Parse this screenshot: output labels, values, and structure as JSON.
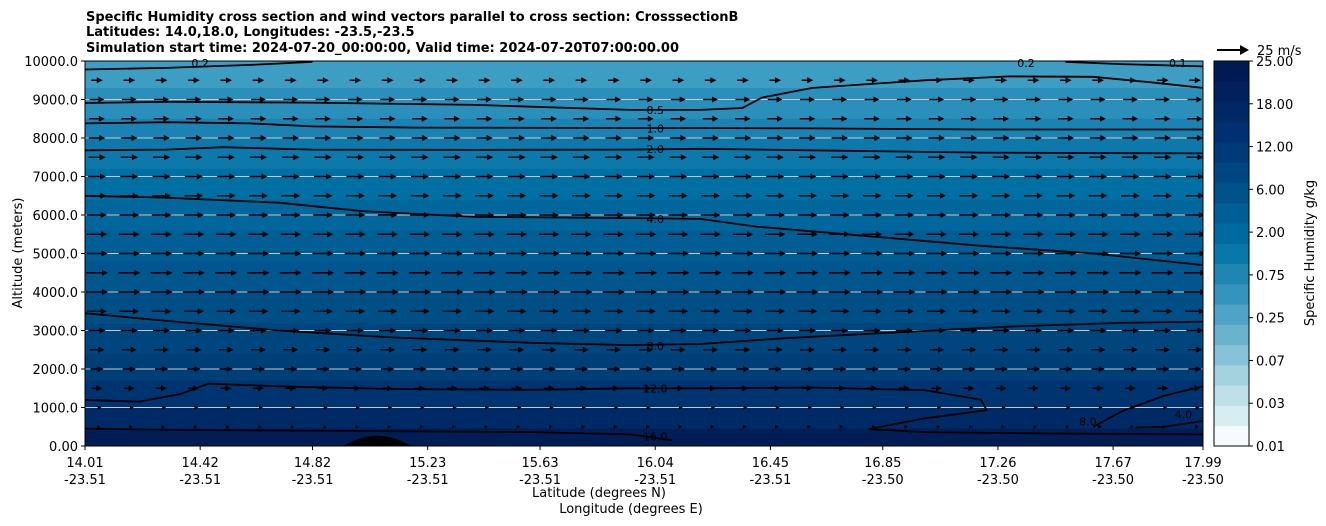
{
  "chart_data": {
    "type": "contourf",
    "title_lines": [
      "Specific Humidity cross section and wind vectors parallel to cross section: CrosssectionB",
      "Latitudes: 14.0,18.0, Longitudes: -23.5,-23.5",
      "Simulation start time: 2024-07-20_00:00:00, Valid time: 2024-07-20T07:00:00.00"
    ],
    "xlabel_line1": "Latitude (degrees N)",
    "xlabel_line2": "Longitude (degrees E)",
    "ylabel": "Altitude (meters)",
    "ylim": [
      0,
      10000
    ],
    "xlim": [
      14.01,
      17.99
    ],
    "grid": "horizontal",
    "x_ticks": [
      {
        "lat": "14.01",
        "lon": "-23.51",
        "v": 14.01
      },
      {
        "lat": "14.42",
        "lon": "-23.51",
        "v": 14.42
      },
      {
        "lat": "14.82",
        "lon": "-23.51",
        "v": 14.82
      },
      {
        "lat": "15.23",
        "lon": "-23.51",
        "v": 15.23
      },
      {
        "lat": "15.63",
        "lon": "-23.51",
        "v": 15.63
      },
      {
        "lat": "16.04",
        "lon": "-23.51",
        "v": 16.04
      },
      {
        "lat": "16.45",
        "lon": "-23.51",
        "v": 16.45
      },
      {
        "lat": "16.85",
        "lon": "-23.50",
        "v": 16.85
      },
      {
        "lat": "17.26",
        "lon": "-23.50",
        "v": 17.26
      },
      {
        "lat": "17.67",
        "lon": "-23.50",
        "v": 17.67
      },
      {
        "lat": "17.99",
        "lon": "-23.50",
        "v": 17.99
      }
    ],
    "y_ticks": [
      {
        "label": "0.00",
        "v": 0
      },
      {
        "label": "1000.0",
        "v": 1000
      },
      {
        "label": "2000.0",
        "v": 2000
      },
      {
        "label": "3000.0",
        "v": 3000
      },
      {
        "label": "4000.0",
        "v": 4000
      },
      {
        "label": "5000.0",
        "v": 5000
      },
      {
        "label": "6000.0",
        "v": 6000
      },
      {
        "label": "7000.0",
        "v": 7000
      },
      {
        "label": "8000.0",
        "v": 8000
      },
      {
        "label": "9000.0",
        "v": 9000
      },
      {
        "label": "10000.0",
        "v": 10000
      }
    ],
    "colorbar": {
      "label": "Specific Humidity g/kg",
      "ticks": [
        "0.01",
        "0.03",
        "0.07",
        "0.25",
        "0.75",
        "2.00",
        "6.00",
        "12.00",
        "18.00",
        "25.00"
      ],
      "colors": [
        "#f7fbff",
        "#d8edf2",
        "#bfe0e9",
        "#a4d3e0",
        "#86c3d8",
        "#69b3cf",
        "#4ea3c6",
        "#3594bd",
        "#1f86b4",
        "#0a77ab",
        "#006aa0",
        "#005e96",
        "#00528b",
        "#004682",
        "#003b78",
        "#00306f",
        "#002866",
        "#00215c",
        "#001a53"
      ]
    },
    "fill_bands": [
      {
        "top": 10000,
        "color": "#3d9dc2"
      },
      {
        "top": 9300,
        "color": "#2a8fba"
      },
      {
        "top": 8500,
        "color": "#1a83b3"
      },
      {
        "top": 8000,
        "color": "#0c78ab"
      },
      {
        "top": 7200,
        "color": "#006fa3"
      },
      {
        "top": 6400,
        "color": "#00669c"
      },
      {
        "top": 5600,
        "color": "#005e95"
      },
      {
        "top": 4800,
        "color": "#00568d"
      },
      {
        "top": 4000,
        "color": "#004e86"
      },
      {
        "top": 3200,
        "color": "#00467e"
      },
      {
        "top": 2400,
        "color": "#003e77"
      },
      {
        "top": 1700,
        "color": "#003470"
      },
      {
        "top": 1000,
        "color": "#002a66"
      },
      {
        "top": 450,
        "color": "#00225c"
      }
    ],
    "contours": [
      {
        "label": "0.2",
        "label_pos": [
          14.42,
          9950
        ],
        "pts": [
          [
            14.01,
            9780
          ],
          [
            14.3,
            9820
          ],
          [
            14.6,
            9900
          ],
          [
            14.82,
            9980
          ]
        ]
      },
      {
        "label": "0.2",
        "label_pos": [
          17.36,
          9950
        ],
        "pts": [
          [
            17.5,
            9980
          ],
          [
            17.7,
            9920
          ],
          [
            17.99,
            9860
          ]
        ]
      },
      {
        "label": "0.1",
        "label_pos": [
          17.9,
          9950
        ],
        "pts": []
      },
      {
        "label": "0.5",
        "label_pos": [
          16.04,
          8730
        ],
        "pts": [
          [
            14.01,
            8910
          ],
          [
            14.3,
            8940
          ],
          [
            14.8,
            8920
          ],
          [
            15.4,
            8860
          ],
          [
            15.95,
            8730
          ],
          [
            16.2,
            8730
          ],
          [
            16.35,
            8780
          ],
          [
            16.42,
            9050
          ],
          [
            16.6,
            9300
          ],
          [
            17.0,
            9500
          ],
          [
            17.3,
            9600
          ],
          [
            17.6,
            9590
          ],
          [
            17.8,
            9450
          ],
          [
            17.99,
            9300
          ]
        ]
      },
      {
        "label": "1.0",
        "label_pos": [
          16.04,
          8250
        ],
        "pts": [
          [
            14.01,
            8380
          ],
          [
            14.3,
            8410
          ],
          [
            14.6,
            8380
          ],
          [
            14.82,
            8300
          ],
          [
            15.2,
            8270
          ],
          [
            15.95,
            8260
          ],
          [
            16.2,
            8260
          ],
          [
            16.6,
            8250
          ],
          [
            17.2,
            8220
          ],
          [
            17.99,
            8220
          ]
        ]
      },
      {
        "label": "2.0",
        "label_pos": [
          16.04,
          7720
        ],
        "pts": [
          [
            14.01,
            7680
          ],
          [
            14.3,
            7700
          ],
          [
            14.5,
            7760
          ],
          [
            14.82,
            7700
          ],
          [
            15.4,
            7690
          ],
          [
            15.95,
            7700
          ],
          [
            16.2,
            7720
          ],
          [
            16.6,
            7680
          ],
          [
            17.2,
            7620
          ],
          [
            17.99,
            7600
          ]
        ]
      },
      {
        "label": "4.0",
        "label_pos": [
          16.04,
          5900
        ],
        "pts": [
          [
            14.01,
            6500
          ],
          [
            14.3,
            6450
          ],
          [
            14.7,
            6320
          ],
          [
            15.0,
            6100
          ],
          [
            15.4,
            5950
          ],
          [
            15.95,
            5920
          ],
          [
            16.2,
            5900
          ],
          [
            16.4,
            5700
          ],
          [
            16.8,
            5450
          ],
          [
            17.2,
            5200
          ],
          [
            17.6,
            5000
          ],
          [
            17.99,
            4700
          ]
        ]
      },
      {
        "label": "8.0",
        "label_pos": [
          16.04,
          2600
        ],
        "pts": [
          [
            14.01,
            3450
          ],
          [
            14.3,
            3250
          ],
          [
            14.7,
            3000
          ],
          [
            15.1,
            2820
          ],
          [
            15.6,
            2680
          ],
          [
            15.95,
            2620
          ],
          [
            16.2,
            2650
          ],
          [
            16.5,
            2800
          ],
          [
            16.9,
            2950
          ],
          [
            17.3,
            3100
          ],
          [
            17.7,
            3200
          ],
          [
            17.99,
            3230
          ]
        ]
      },
      {
        "label": "12.0",
        "label_pos": [
          16.04,
          1500
        ],
        "pts": [
          [
            14.01,
            1200
          ],
          [
            14.2,
            1150
          ],
          [
            14.35,
            1350
          ],
          [
            14.45,
            1620
          ],
          [
            14.7,
            1550
          ],
          [
            15.1,
            1480
          ],
          [
            15.6,
            1460
          ],
          [
            15.95,
            1500
          ],
          [
            16.2,
            1500
          ],
          [
            16.6,
            1520
          ],
          [
            17.0,
            1450
          ],
          [
            17.2,
            1200
          ],
          [
            17.22,
            930
          ],
          [
            17.0,
            720
          ],
          [
            16.8,
            440
          ],
          [
            17.0,
            360
          ],
          [
            17.5,
            320
          ],
          [
            17.99,
            300
          ]
        ]
      },
      {
        "label": "8.0",
        "label_pos": [
          17.58,
          640
        ],
        "pts": [
          [
            17.6,
            500
          ],
          [
            17.7,
            900
          ],
          [
            17.85,
            1300
          ],
          [
            17.99,
            1550
          ]
        ]
      },
      {
        "label": "4.0",
        "label_pos": [
          17.92,
          820
        ],
        "pts": [
          [
            17.99,
            650
          ],
          [
            17.85,
            500
          ],
          [
            17.75,
            480
          ]
        ]
      },
      {
        "label": "16.0",
        "label_pos": [
          16.04,
          250
        ],
        "pts": [
          [
            14.01,
            450
          ],
          [
            14.3,
            420
          ],
          [
            14.8,
            400
          ],
          [
            15.2,
            380
          ],
          [
            15.6,
            360
          ],
          [
            15.95,
            300
          ],
          [
            16.1,
            150
          ]
        ]
      }
    ],
    "terrain": {
      "center": 15.05,
      "half_width": 0.12,
      "peak": 220
    },
    "wind_reference": "25 m/s",
    "wind_levels": [
      {
        "alt": 9500,
        "u": 0.35
      },
      {
        "alt": 9000,
        "u": 0.55
      },
      {
        "alt": 8500,
        "u": 0.6
      },
      {
        "alt": 8000,
        "u": 0.65
      },
      {
        "alt": 7500,
        "u": 0.7
      },
      {
        "alt": 7000,
        "u": 0.75
      },
      {
        "alt": 6500,
        "u": 0.8
      },
      {
        "alt": 6000,
        "u": 0.85
      },
      {
        "alt": 5500,
        "u": 0.9
      },
      {
        "alt": 5000,
        "u": 0.95
      },
      {
        "alt": 4500,
        "u": 1.0
      },
      {
        "alt": 4000,
        "u": 1.0
      },
      {
        "alt": 3500,
        "u": 0.85
      },
      {
        "alt": 3000,
        "u": 0.7
      },
      {
        "alt": 2500,
        "u": 0.55
      },
      {
        "alt": 2000,
        "u": 0.45
      },
      {
        "alt": 1500,
        "u": 0.3
      },
      {
        "alt": 1000,
        "u": 0.2
      },
      {
        "alt": 500,
        "u": 0.12
      }
    ]
  }
}
